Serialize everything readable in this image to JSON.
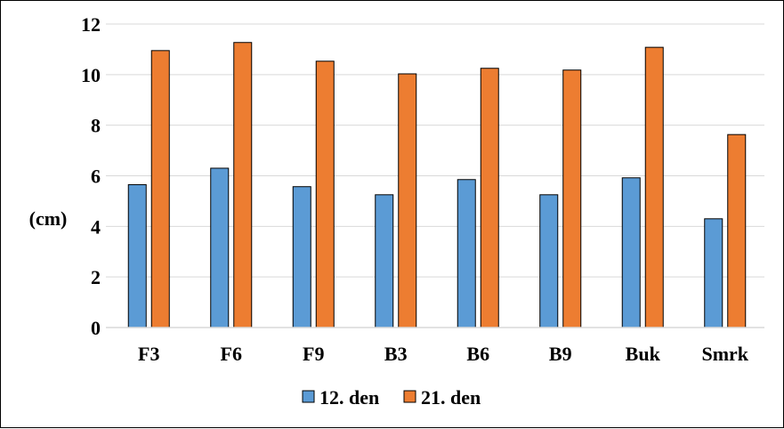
{
  "chart_data": {
    "type": "bar",
    "ylabel": "(cm)",
    "ylim": [
      0,
      12
    ],
    "yticks": [
      0,
      2,
      4,
      6,
      8,
      10,
      12
    ],
    "grid": true,
    "legend_position": "bottom",
    "categories": [
      "F3",
      "F6",
      "F9",
      "B3",
      "B6",
      "B9",
      "Buk",
      "Smrk"
    ],
    "series": [
      {
        "name": "12. den",
        "color": "#5b9bd5",
        "values": [
          5.65,
          6.3,
          5.57,
          5.25,
          5.85,
          5.25,
          5.92,
          4.3
        ]
      },
      {
        "name": "21. den",
        "color": "#ed7d31",
        "values": [
          10.95,
          11.27,
          10.53,
          10.03,
          10.25,
          10.18,
          11.08,
          7.63
        ]
      }
    ]
  }
}
